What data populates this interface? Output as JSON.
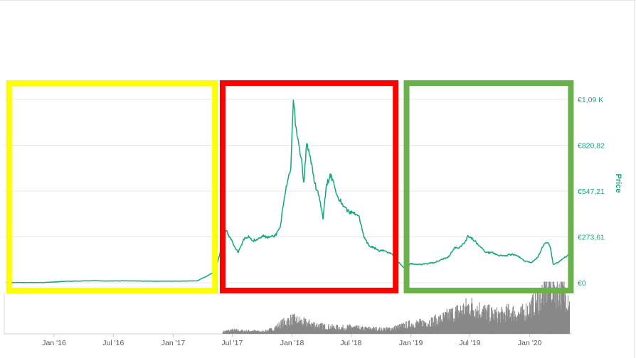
{
  "chart_data": {
    "type": "line",
    "title": "",
    "xlabel": "",
    "ylabel": "Price",
    "x_range": [
      "2015-08",
      "2020-05"
    ],
    "ylim": [
      0,
      1200
    ],
    "grid": true,
    "x_ticks": [
      {
        "label": "Jan '16",
        "date": "2016-01"
      },
      {
        "label": "Jul '16",
        "date": "2016-07"
      },
      {
        "label": "Jan '17",
        "date": "2017-01"
      },
      {
        "label": "Jul '17",
        "date": "2017-07"
      },
      {
        "label": "Jan '18",
        "date": "2018-01"
      },
      {
        "label": "Jul '18",
        "date": "2018-07"
      },
      {
        "label": "Jan '19",
        "date": "2019-01"
      },
      {
        "label": "Jul '19",
        "date": "2019-07"
      },
      {
        "label": "Jan '20",
        "date": "2020-01"
      }
    ],
    "y_ticks": [
      {
        "label": "€0",
        "value": 0
      },
      {
        "label": "€273,61",
        "value": 273.61
      },
      {
        "label": "€547,21",
        "value": 547.21
      },
      {
        "label": "€820,82",
        "value": 820.82
      },
      {
        "label": "€1,09 K",
        "value": 1094.43
      }
    ],
    "series": [
      {
        "color": "#17a673",
        "x": [
          "2015-08-07",
          "2015-10-01",
          "2015-12-01",
          "2016-02-01",
          "2016-03-15",
          "2016-05-01",
          "2016-06-15",
          "2016-08-01",
          "2016-10-01",
          "2016-12-01",
          "2017-02-01",
          "2017-03-15",
          "2017-04-15",
          "2017-05-10",
          "2017-05-25",
          "2017-06-12",
          "2017-06-28",
          "2017-07-10",
          "2017-07-20",
          "2017-08-05",
          "2017-08-20",
          "2017-09-01",
          "2017-09-15",
          "2017-10-01",
          "2017-10-20",
          "2017-11-10",
          "2017-11-25",
          "2017-12-10",
          "2017-12-20",
          "2017-12-28",
          "2018-01-05",
          "2018-01-13",
          "2018-01-20",
          "2018-02-01",
          "2018-02-06",
          "2018-02-15",
          "2018-02-25",
          "2018-03-10",
          "2018-03-25",
          "2018-04-06",
          "2018-04-15",
          "2018-04-28",
          "2018-05-05",
          "2018-05-20",
          "2018-06-05",
          "2018-06-25",
          "2018-07-10",
          "2018-07-25",
          "2018-08-10",
          "2018-08-25",
          "2018-09-10",
          "2018-09-25",
          "2018-10-15",
          "2018-11-05",
          "2018-11-20",
          "2018-12-05",
          "2018-12-15",
          "2018-12-31",
          "2019-01-15",
          "2019-02-05",
          "2019-02-25",
          "2019-03-15",
          "2019-04-05",
          "2019-04-25",
          "2019-05-15",
          "2019-05-30",
          "2019-06-15",
          "2019-06-26",
          "2019-07-10",
          "2019-07-30",
          "2019-08-20",
          "2019-09-10",
          "2019-09-25",
          "2019-10-15",
          "2019-11-05",
          "2019-11-25",
          "2019-12-15",
          "2020-01-05",
          "2020-01-25",
          "2020-02-14",
          "2020-02-25",
          "2020-03-05",
          "2020-03-13",
          "2020-03-25",
          "2020-04-10",
          "2020-04-25",
          "2020-05-10"
        ],
        "y": [
          1,
          1,
          1,
          8,
          10,
          12,
          10,
          11,
          10,
          9,
          10,
          11,
          40,
          70,
          180,
          310,
          260,
          210,
          180,
          260,
          280,
          250,
          260,
          280,
          270,
          280,
          330,
          520,
          620,
          680,
          1090,
          930,
          850,
          700,
          600,
          830,
          760,
          600,
          520,
          380,
          560,
          650,
          620,
          520,
          470,
          420,
          420,
          400,
          270,
          220,
          210,
          190,
          190,
          170,
          130,
          100,
          80,
          115,
          110,
          110,
          115,
          120,
          140,
          150,
          210,
          210,
          240,
          280,
          260,
          220,
          180,
          180,
          165,
          160,
          170,
          160,
          130,
          120,
          150,
          230,
          240,
          205,
          110,
          120,
          140,
          160,
          175
        ]
      }
    ],
    "volume": {
      "color": "#888888",
      "x": [
        "2017-06-01",
        "2017-07-01",
        "2017-08-01",
        "2017-09-01",
        "2017-10-01",
        "2017-11-01",
        "2017-12-01",
        "2018-01-01",
        "2018-02-01",
        "2018-03-01",
        "2018-04-01",
        "2018-05-01",
        "2018-06-01",
        "2018-07-01",
        "2018-08-01",
        "2018-09-01",
        "2018-10-01",
        "2018-11-01",
        "2018-12-01",
        "2019-01-01",
        "2019-02-01",
        "2019-03-01",
        "2019-04-01",
        "2019-05-01",
        "2019-06-01",
        "2019-07-01",
        "2019-08-01",
        "2019-09-01",
        "2019-10-01",
        "2019-11-01",
        "2019-12-01",
        "2020-01-01",
        "2020-02-01",
        "2020-03-01",
        "2020-04-01",
        "2020-05-01"
      ],
      "values": [
        3,
        5,
        4,
        4,
        3,
        6,
        14,
        19,
        15,
        13,
        10,
        9,
        8,
        9,
        7,
        7,
        6,
        7,
        10,
        13,
        14,
        16,
        19,
        25,
        30,
        36,
        31,
        26,
        24,
        29,
        25,
        34,
        48,
        65,
        58,
        48
      ]
    }
  },
  "highlights": [
    {
      "color": "#ffff00",
      "from": "2015-08-07",
      "to": "2017-05-18"
    },
    {
      "color": "#ff0000",
      "from": "2017-05-24",
      "to": "2018-11-24"
    },
    {
      "color": "#6ab04c",
      "from": "2018-12-10",
      "to": "2020-05-15"
    }
  ]
}
